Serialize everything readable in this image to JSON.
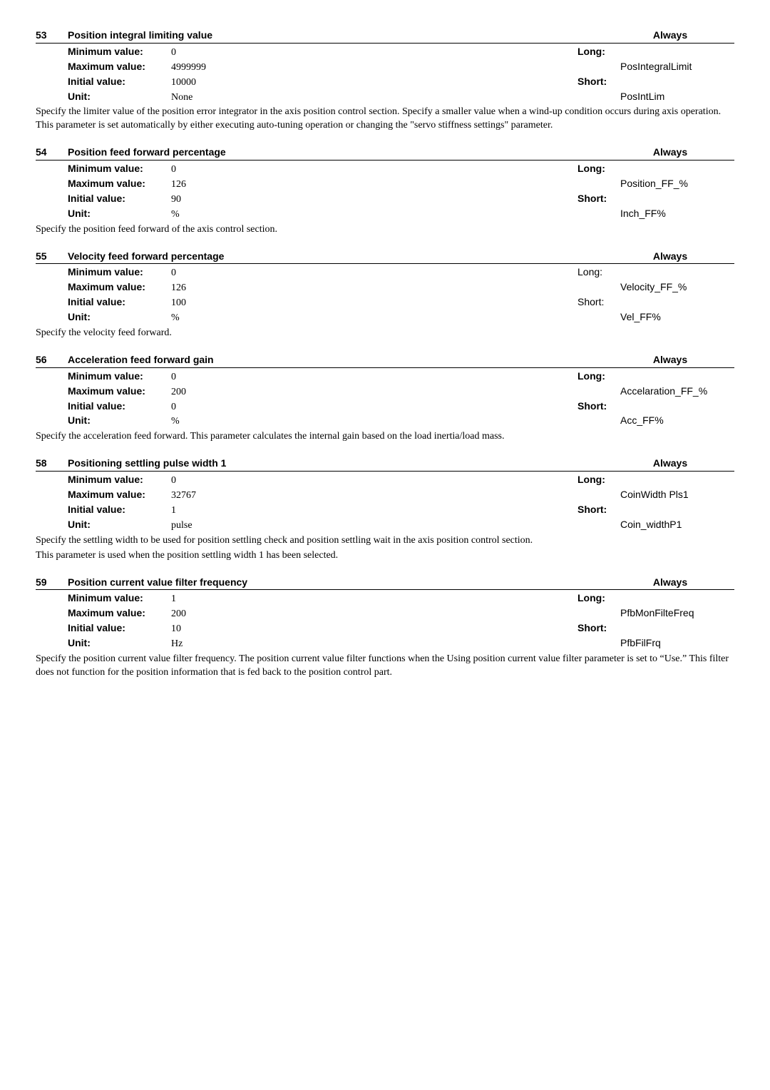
{
  "params": [
    {
      "num": "53",
      "title": "Position integral limiting value",
      "always": "Always",
      "min": "0",
      "max": "4999999",
      "init": "10000",
      "unit": "None",
      "long_label": "Long:",
      "short_label": "Short:",
      "long_code": "PosIntegralLimit",
      "short_code": "PosIntLim",
      "light": false,
      "desc": "Specify the limiter value of the position error integrator in the axis position control section. Specify a smaller value when a wind-up condition occurs during axis operation. This parameter is set automatically by either executing auto-tuning operation or changing the \"servo stiffness settings\" parameter."
    },
    {
      "num": "54",
      "title": "Position feed forward percentage",
      "always": "Always",
      "min": "0",
      "max": "126",
      "init": "90",
      "unit": "%",
      "long_label": "Long:",
      "short_label": "Short:",
      "long_code": "Position_FF_%",
      "short_code": "Inch_FF%",
      "light": false,
      "desc": "Specify the position feed forward of the axis control section."
    },
    {
      "num": "55",
      "title": "Velocity feed forward percentage",
      "always": "Always",
      "min": "0",
      "max": "126",
      "init": "100",
      "unit": "%",
      "long_label": "Long:",
      "short_label": "Short:",
      "long_code": "Velocity_FF_%",
      "short_code": "Vel_FF%",
      "light": true,
      "desc": "Specify the velocity feed forward."
    },
    {
      "num": "56",
      "title": "Acceleration feed forward gain",
      "always": "Always",
      "min": "0",
      "max": "200",
      "init": "0",
      "unit": "%",
      "long_label": "Long:",
      "short_label": "Short:",
      "long_code": "Accelaration_FF_%",
      "short_code": "Acc_FF%",
      "light": false,
      "desc": "Specify the acceleration feed forward. This parameter calculates the internal gain based on the load inertia/load mass."
    },
    {
      "num": "58",
      "title": "Positioning settling pulse width 1",
      "always": "Always",
      "min": "0",
      "max": "32767",
      "init": "1",
      "unit": "pulse",
      "long_label": "Long:",
      "short_label": "Short:",
      "long_code": "CoinWidth Pls1",
      "short_code": "Coin_widthP1",
      "light": false,
      "desc": "Specify the settling width to be used for position settling check and position settling wait in the axis position control section.\nThis parameter is used when the position settling width 1 has been selected."
    },
    {
      "num": "59",
      "title": "Position current value filter frequency",
      "always": "Always",
      "min": "1",
      "max": "200",
      "init": "10",
      "unit": "Hz",
      "long_label": "Long:",
      "short_label": "Short:",
      "long_code": "PfbMonFilteFreq",
      "short_code": "PfbFilFrq",
      "light": false,
      "desc": "Specify the position current value filter frequency. The position current value filter functions when the Using position current value filter parameter is set to “Use.” This filter does not function for the position information that is fed back to the position control part."
    }
  ],
  "labels": {
    "min": "Minimum value:",
    "max": "Maximum value:",
    "init": "Initial value:",
    "unit": "Unit:"
  }
}
